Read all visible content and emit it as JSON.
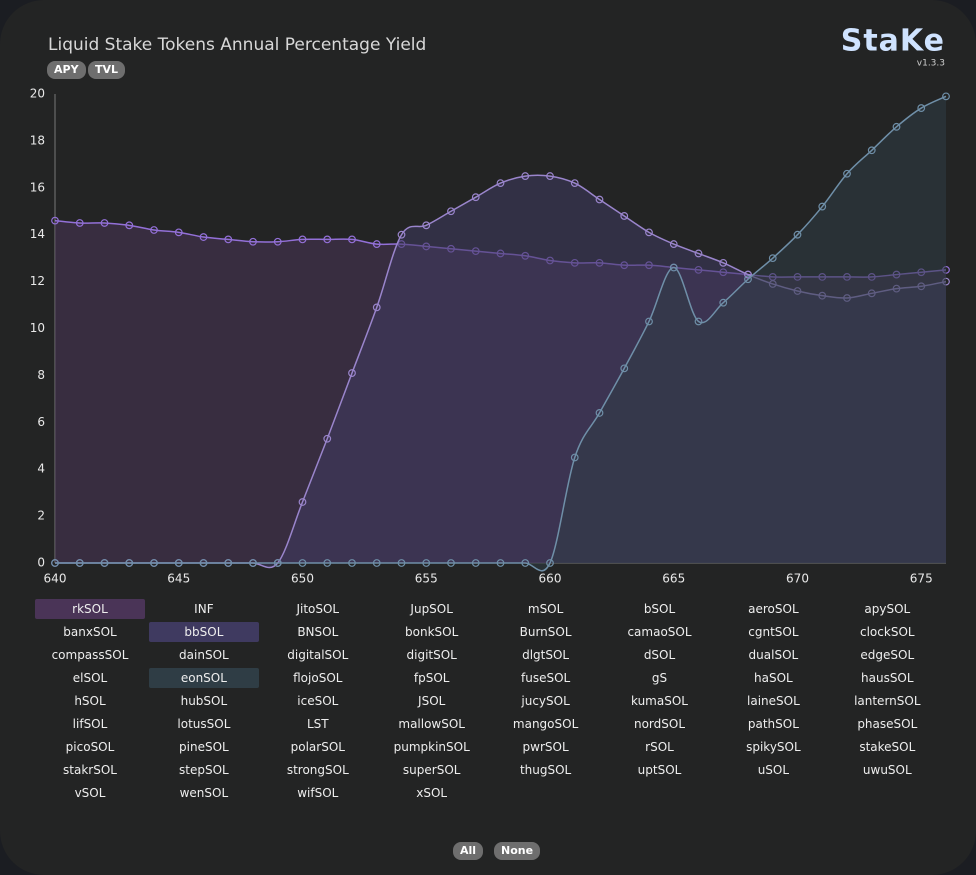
{
  "logo": "StaKe",
  "version": "v1.3.3",
  "metric_buttons": [
    "APY",
    "TVL"
  ],
  "select_buttons": [
    "All",
    "None"
  ],
  "tokens": [
    {
      "name": "rkSOL",
      "selected": true
    },
    {
      "name": "INF",
      "selected": false
    },
    {
      "name": "JitoSOL",
      "selected": false
    },
    {
      "name": "JupSOL",
      "selected": false
    },
    {
      "name": "mSOL",
      "selected": false
    },
    {
      "name": "bSOL",
      "selected": false
    },
    {
      "name": "aeroSOL",
      "selected": false
    },
    {
      "name": "apySOL",
      "selected": false
    },
    {
      "name": "banxSOL",
      "selected": false
    },
    {
      "name": "bbSOL",
      "selected": true
    },
    {
      "name": "BNSOL",
      "selected": false
    },
    {
      "name": "bonkSOL",
      "selected": false
    },
    {
      "name": "BurnSOL",
      "selected": false
    },
    {
      "name": "camaoSOL",
      "selected": false
    },
    {
      "name": "cgntSOL",
      "selected": false
    },
    {
      "name": "clockSOL",
      "selected": false
    },
    {
      "name": "compassSOL",
      "selected": false
    },
    {
      "name": "dainSOL",
      "selected": false
    },
    {
      "name": "digitalSOL",
      "selected": false
    },
    {
      "name": "digitSOL",
      "selected": false
    },
    {
      "name": "dlgtSOL",
      "selected": false
    },
    {
      "name": "dSOL",
      "selected": false
    },
    {
      "name": "dualSOL",
      "selected": false
    },
    {
      "name": "edgeSOL",
      "selected": false
    },
    {
      "name": "elSOL",
      "selected": false
    },
    {
      "name": "eonSOL",
      "selected": true
    },
    {
      "name": "flojoSOL",
      "selected": false
    },
    {
      "name": "fpSOL",
      "selected": false
    },
    {
      "name": "fuseSOL",
      "selected": false
    },
    {
      "name": "gS",
      "selected": false
    },
    {
      "name": "haSOL",
      "selected": false
    },
    {
      "name": "hausSOL",
      "selected": false
    },
    {
      "name": "hSOL",
      "selected": false
    },
    {
      "name": "hubSOL",
      "selected": false
    },
    {
      "name": "iceSOL",
      "selected": false
    },
    {
      "name": "JSOL",
      "selected": false
    },
    {
      "name": "jucySOL",
      "selected": false
    },
    {
      "name": "kumaSOL",
      "selected": false
    },
    {
      "name": "laineSOL",
      "selected": false
    },
    {
      "name": "lanternSOL",
      "selected": false
    },
    {
      "name": "lifSOL",
      "selected": false
    },
    {
      "name": "lotusSOL",
      "selected": false
    },
    {
      "name": "LST",
      "selected": false
    },
    {
      "name": "mallowSOL",
      "selected": false
    },
    {
      "name": "mangoSOL",
      "selected": false
    },
    {
      "name": "nordSOL",
      "selected": false
    },
    {
      "name": "pathSOL",
      "selected": false
    },
    {
      "name": "phaseSOL",
      "selected": false
    },
    {
      "name": "picoSOL",
      "selected": false
    },
    {
      "name": "pineSOL",
      "selected": false
    },
    {
      "name": "polarSOL",
      "selected": false
    },
    {
      "name": "pumpkinSOL",
      "selected": false
    },
    {
      "name": "pwrSOL",
      "selected": false
    },
    {
      "name": "rSOL",
      "selected": false
    },
    {
      "name": "spikySOL",
      "selected": false
    },
    {
      "name": "stakeSOL",
      "selected": false
    },
    {
      "name": "stakrSOL",
      "selected": false
    },
    {
      "name": "stepSOL",
      "selected": false
    },
    {
      "name": "strongSOL",
      "selected": false
    },
    {
      "name": "superSOL",
      "selected": false
    },
    {
      "name": "thugSOL",
      "selected": false
    },
    {
      "name": "uptSOL",
      "selected": false
    },
    {
      "name": "uSOL",
      "selected": false
    },
    {
      "name": "uwuSOL",
      "selected": false
    },
    {
      "name": "vSOL",
      "selected": false
    },
    {
      "name": "wenSOL",
      "selected": false
    },
    {
      "name": "wifSOL",
      "selected": false
    },
    {
      "name": "xSOL",
      "selected": false
    }
  ],
  "chart_data": {
    "type": "area",
    "title": "Liquid Stake Tokens Annual Percentage Yield",
    "x": [
      640,
      641,
      642,
      643,
      644,
      645,
      646,
      647,
      648,
      649,
      650,
      651,
      652,
      653,
      654,
      655,
      656,
      657,
      658,
      659,
      660,
      661,
      662,
      663,
      664,
      665,
      666,
      667,
      668,
      669,
      670,
      671,
      672,
      673,
      674,
      675,
      676
    ],
    "xlim": [
      640,
      676
    ],
    "xticks": [
      640,
      645,
      650,
      655,
      660,
      665,
      670,
      675
    ],
    "ylim": [
      0,
      20
    ],
    "yticks": [
      0,
      2,
      4,
      6,
      8,
      10,
      12,
      14,
      16,
      18,
      20
    ],
    "series": [
      {
        "color": "#9370d8",
        "fill": "#4a3457",
        "values": [
          14.6,
          14.5,
          14.5,
          14.4,
          14.2,
          14.1,
          13.9,
          13.8,
          13.7,
          13.7,
          13.8,
          13.8,
          13.8,
          13.6,
          13.6,
          13.5,
          13.4,
          13.3,
          13.2,
          13.1,
          12.9,
          12.8,
          12.8,
          12.7,
          12.7,
          12.6,
          12.5,
          12.4,
          12.3,
          12.2,
          12.2,
          12.2,
          12.2,
          12.2,
          12.3,
          12.4,
          12.5
        ]
      },
      {
        "color": "#9a85cc",
        "fill": "#3f3a60",
        "values": [
          0,
          0,
          0,
          0,
          0,
          0,
          0,
          0,
          0,
          0,
          2.6,
          5.3,
          8.1,
          10.9,
          14.0,
          14.4,
          15.0,
          15.6,
          16.2,
          16.5,
          16.5,
          16.2,
          15.5,
          14.8,
          14.1,
          13.6,
          13.2,
          12.8,
          12.3,
          11.9,
          11.6,
          11.4,
          11.3,
          11.5,
          11.7,
          11.8,
          12.0
        ]
      },
      {
        "color": "#6f8fa8",
        "fill": "#2f3d45",
        "values": [
          0,
          0,
          0,
          0,
          0,
          0,
          0,
          0,
          0,
          0,
          0,
          0,
          0,
          0,
          0,
          0,
          0,
          0,
          0,
          0,
          0,
          4.5,
          6.4,
          8.3,
          10.3,
          12.6,
          10.3,
          11.1,
          12.1,
          13.0,
          14.0,
          15.2,
          16.6,
          17.6,
          18.6,
          19.4,
          19.9
        ]
      }
    ]
  }
}
